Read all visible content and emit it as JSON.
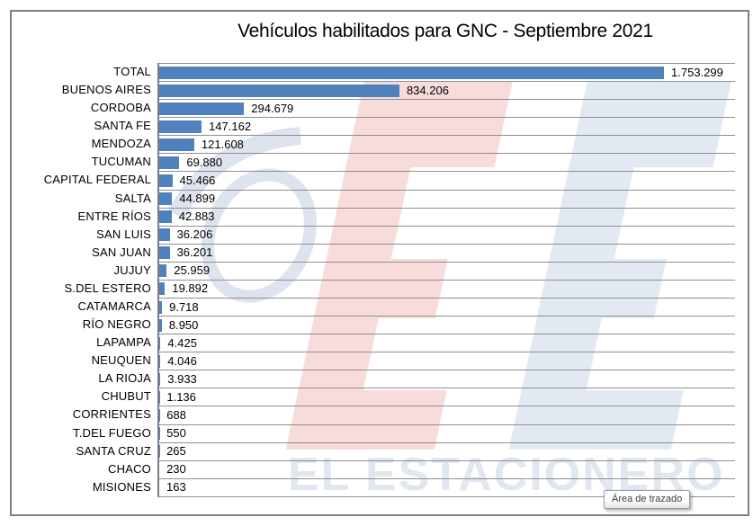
{
  "window": {
    "background": "#ffffff",
    "frame_border_color": "#808080"
  },
  "chart_data": {
    "type": "bar",
    "orientation": "horizontal",
    "title": "Vehículos habilitados para GNC - Septiembre 2021",
    "categories": [
      "TOTAL",
      "BUENOS AIRES",
      "CORDOBA",
      "SANTA FE",
      "MENDOZA",
      "TUCUMAN",
      "CAPITAL FEDERAL",
      "SALTA",
      "ENTRE RÍOS",
      "SAN LUIS",
      "SAN JUAN",
      "JUJUY",
      "S.DEL ESTERO",
      "CATAMARCA",
      "RÍO NEGRO",
      "LAPAMPA",
      "NEUQUEN",
      "LA RIOJA",
      "CHUBUT",
      "CORRIENTES",
      "T.DEL FUEGO",
      "SANTA CRUZ",
      "CHACO",
      "MISIONES"
    ],
    "values": [
      1753299,
      834206,
      294679,
      147162,
      121608,
      69880,
      45466,
      44899,
      42883,
      36206,
      36201,
      25959,
      19892,
      9718,
      8950,
      4425,
      4046,
      3933,
      1136,
      688,
      550,
      265,
      230,
      163
    ],
    "value_labels": [
      "1.753.299",
      "834.206",
      "294.679",
      "147.162",
      "121.608",
      "69.880",
      "45.466",
      "44.899",
      "42.883",
      "36.206",
      "36.201",
      "25.959",
      "19.892",
      "9.718",
      "8.950",
      "4.425",
      "4.046",
      "3.933",
      "1.136",
      "688",
      "550",
      "265",
      "230",
      "163"
    ],
    "xlim": [
      0,
      2000000
    ],
    "xlabel": "",
    "ylabel": "",
    "legend": "none",
    "grid": "horizontal category separator lines",
    "bar_color": "#4F81BD",
    "gridline_color": "#8f8f8f",
    "axis_color": "#7d7d7d"
  },
  "watermark": {
    "logo_text": "EL ESTACIONERO",
    "pink_color": "#f8dbdb",
    "blue_color": "#e3e9f2",
    "swoosh_color": "#dde4ef",
    "text_color": "#e0e7f1"
  },
  "tooltip": {
    "label": "Área de trazado"
  }
}
